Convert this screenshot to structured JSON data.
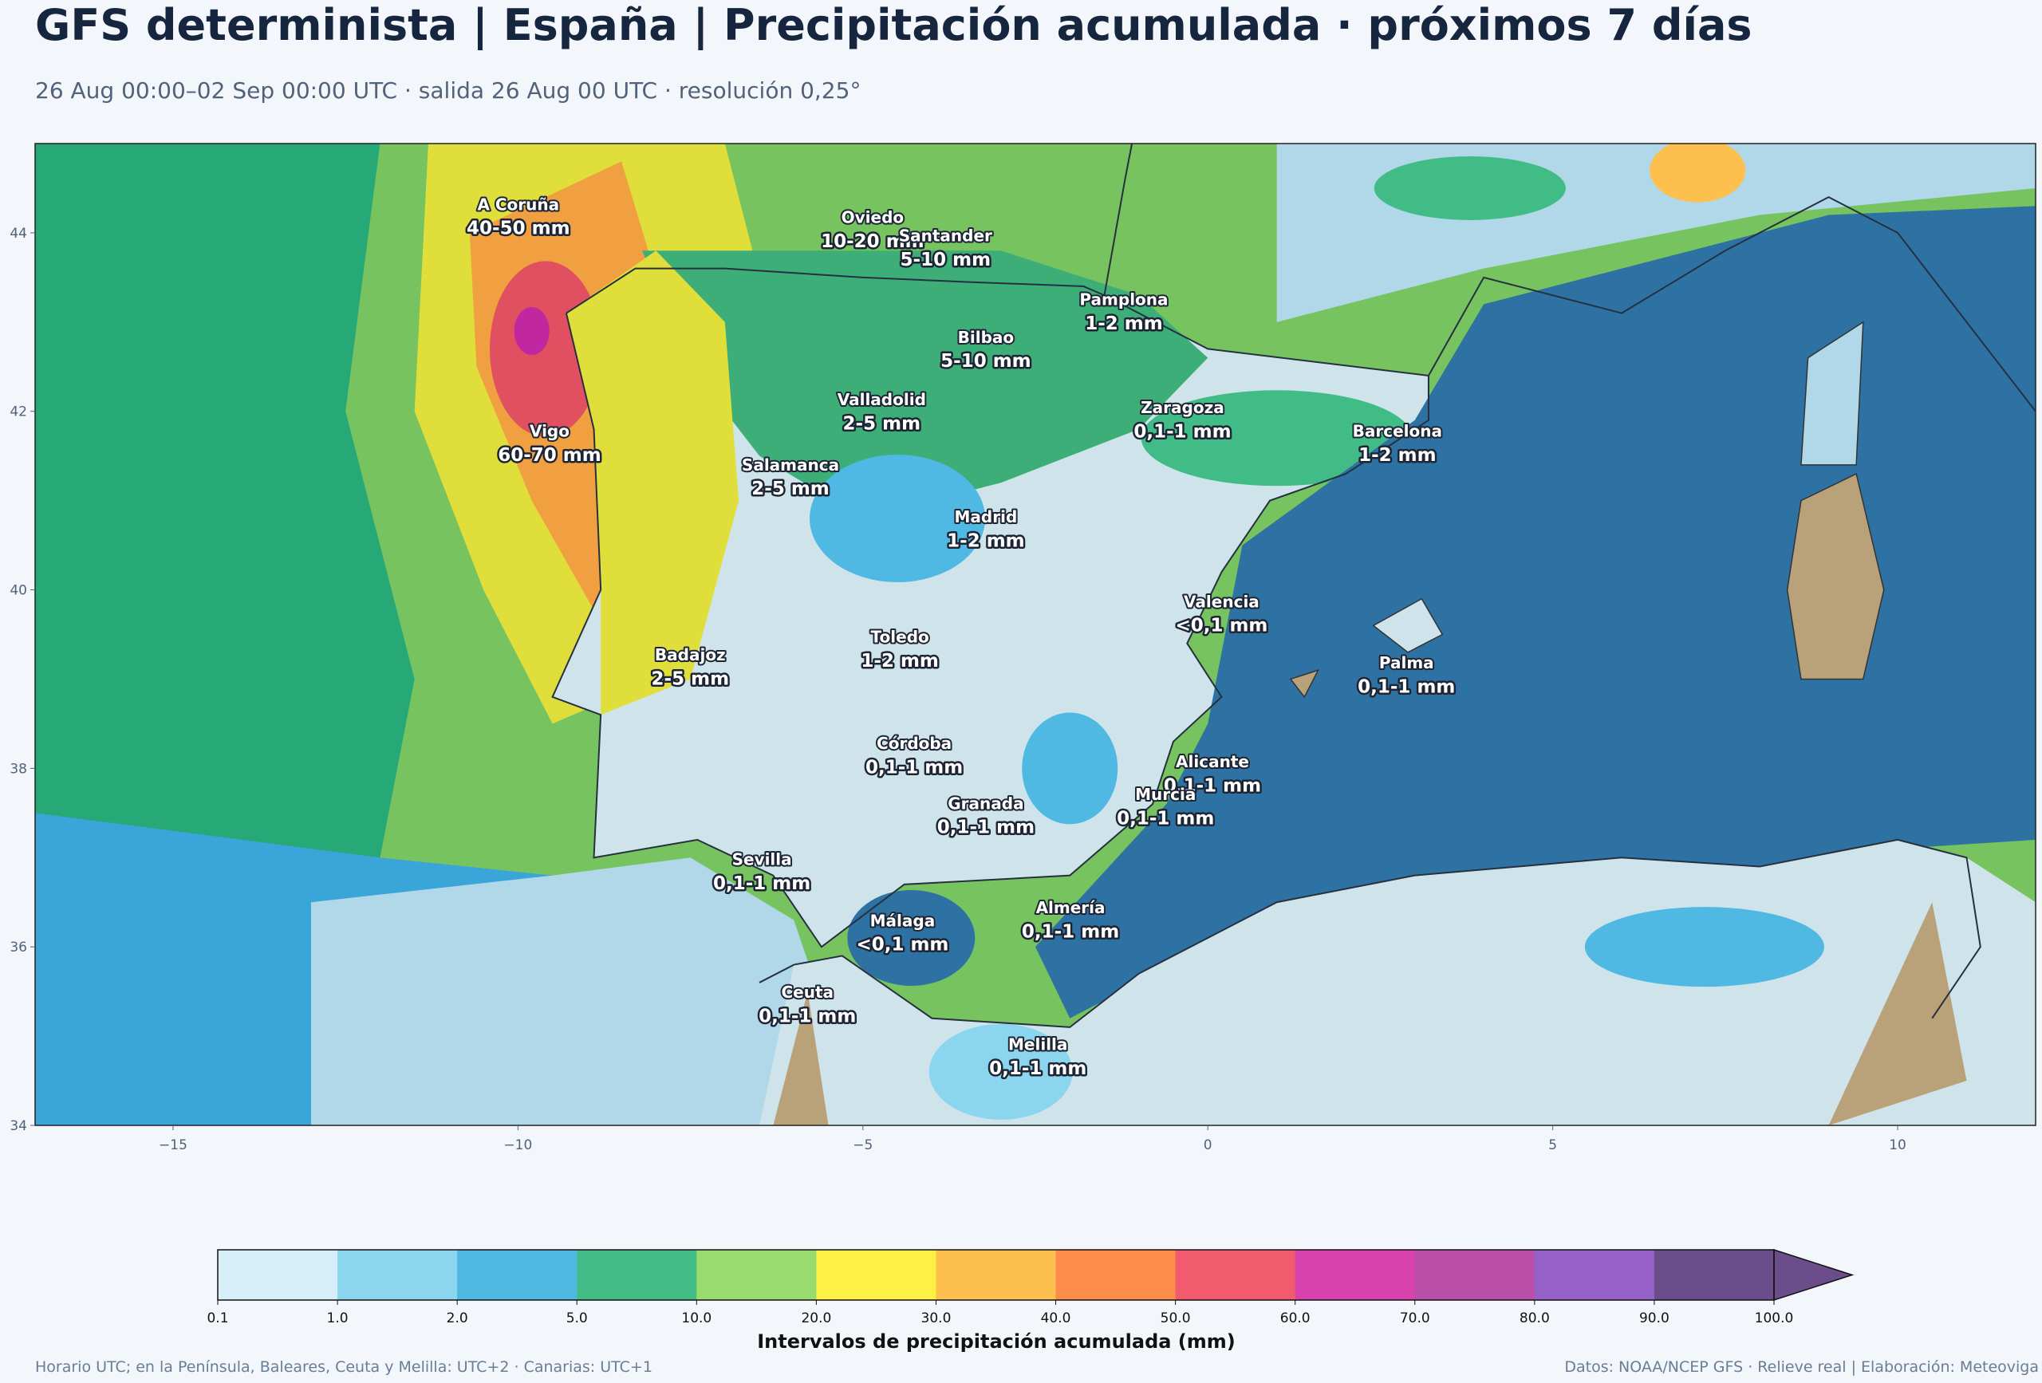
{
  "header": {
    "title": "GFS determinista | España | Precipitación acumulada · próximos 7 días",
    "subtitle": "26 Aug 00:00–02 Sep 00:00 UTC · salida 26 Aug 00 UTC · resolución 0,25°"
  },
  "map": {
    "xlim": [
      -17,
      12
    ],
    "ylim": [
      34,
      45
    ],
    "xticks": [
      {
        "value": -15,
        "label": "−15"
      },
      {
        "value": -10,
        "label": "−10"
      },
      {
        "value": -5,
        "label": "−5"
      },
      0,
      5,
      10
    ],
    "yticks": [
      34,
      36,
      38,
      40,
      42,
      44
    ],
    "cities": [
      {
        "name": "A Coruña",
        "label": "40-50 mm"
      },
      {
        "name": "Oviedo",
        "label": "10-20 mm"
      },
      {
        "name": "Santander",
        "label": "5-10 mm"
      },
      {
        "name": "Pamplona",
        "label": "1-2 mm"
      },
      {
        "name": "Bilbao",
        "label": "5-10 mm"
      },
      {
        "name": "Valladolid",
        "label": "2-5 mm"
      },
      {
        "name": "Zaragoza",
        "label": "0,1-1 mm"
      },
      {
        "name": "Barcelona",
        "label": "1-2 mm"
      },
      {
        "name": "Vigo",
        "label": "60-70 mm"
      },
      {
        "name": "Salamanca",
        "label": "2-5 mm"
      },
      {
        "name": "Madrid",
        "label": "1-2 mm"
      },
      {
        "name": "Valencia",
        "label": "<0,1 mm"
      },
      {
        "name": "Toledo",
        "label": "1-2 mm"
      },
      {
        "name": "Badajoz",
        "label": "2-5 mm"
      },
      {
        "name": "Palma",
        "label": "0,1-1 mm"
      },
      {
        "name": "Córdoba",
        "label": "0,1-1 mm"
      },
      {
        "name": "Alicante",
        "label": "0,1-1 mm"
      },
      {
        "name": "Granada",
        "label": "0,1-1 mm"
      },
      {
        "name": "Murcia",
        "label": "0,1-1 mm"
      },
      {
        "name": "Sevilla",
        "label": "0,1-1 mm"
      },
      {
        "name": "Almería",
        "label": "0,1-1 mm"
      },
      {
        "name": "Málaga",
        "label": "<0,1 mm"
      },
      {
        "name": "Ceuta",
        "label": "0,1-1 mm"
      },
      {
        "name": "Melilla",
        "label": "0,1-1 mm"
      }
    ]
  },
  "colorbar": {
    "label": "Intervalos de precipitación acumulada (mm)",
    "ticks": [
      0.1,
      {
        "value": 1,
        "label": "1.0"
      },
      {
        "value": 2,
        "label": "2.0"
      },
      {
        "value": 5,
        "label": "5.0"
      },
      {
        "value": 10,
        "label": "10.0"
      },
      {
        "value": 20,
        "label": "20.0"
      },
      {
        "value": 30,
        "label": "30.0"
      },
      {
        "value": 40,
        "label": "40.0"
      },
      {
        "value": 50,
        "label": "50.0"
      },
      {
        "value": 60,
        "label": "60.0"
      },
      {
        "value": 70,
        "label": "70.0"
      },
      {
        "value": 80,
        "label": "80.0"
      },
      {
        "value": 90,
        "label": "90.0"
      },
      {
        "value": 100,
        "label": "100.0"
      }
    ],
    "colors": [
      "#d6eef7",
      "#8cd5ef",
      "#4fb8e3",
      "#42bc87",
      "#98dc6e",
      "#fdf243",
      "#fdc04e",
      "#fd8c4a",
      "#f25a6e",
      "#d742ad",
      "#b94fa8",
      "#9661c8",
      "#6b4d8c"
    ]
  },
  "footer": {
    "left": "Horario UTC; en la Península, Baleares, Ceuta y Melilla: UTC+2 · Canarias: UTC+1",
    "right": "Datos: NOAA/NCEP GFS · Relieve real | Elaboración: Meteoviga"
  }
}
